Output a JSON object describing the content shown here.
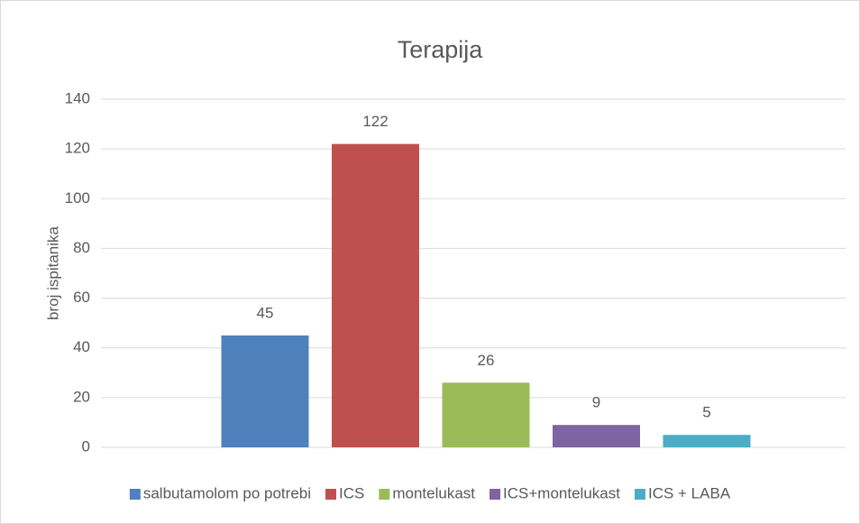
{
  "chart_data": {
    "type": "bar",
    "title": "Terapija",
    "y_label": "broj ispitanika",
    "categories": [
      null
    ],
    "series": [
      {
        "name": "salbutamolom po potrebi",
        "color": "#4f81bd",
        "values": [
          45
        ]
      },
      {
        "name": "ICS",
        "color": "#c0504d",
        "values": [
          122
        ]
      },
      {
        "name": "montelukast",
        "color": "#9bbb59",
        "values": [
          26
        ]
      },
      {
        "name": "ICS+montelukast",
        "color": "#8064a2",
        "values": [
          9
        ]
      },
      {
        "name": "ICS + LABA",
        "color": "#4bacc6",
        "values": [
          5
        ]
      }
    ],
    "ylim": [
      0,
      140
    ],
    "yticks": [
      0,
      20,
      40,
      60,
      80,
      100,
      120,
      140
    ],
    "grid": true,
    "legend": "bottom"
  }
}
